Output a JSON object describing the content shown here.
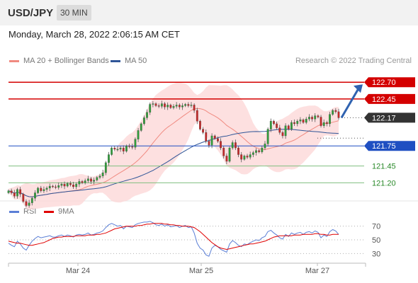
{
  "header": {
    "pair": "USD/JPY",
    "timeframe": "30 MIN",
    "datetime": "Monday, March 28, 2022 2:06:15 AM CET",
    "credit": "Research © 2022 Trading Central"
  },
  "legend": {
    "main": [
      {
        "label": "MA 20 + Bollinger Bands",
        "color": "#f08a80"
      },
      {
        "label": "MA 50",
        "color": "#2f5597"
      }
    ],
    "osc": [
      {
        "label": "RSI",
        "color": "#5b7fd6"
      },
      {
        "label": "9MA",
        "color": "#e00000"
      }
    ]
  },
  "colors": {
    "resistance": "#d40000",
    "current": "#333333",
    "support": "#1f4fc2",
    "target": "#2a8a2a",
    "arrow": "#2f62b0",
    "band": "#fcd5d5"
  },
  "chart_data": [
    {
      "type": "line",
      "subtype": "candlestick",
      "ylim": [
        120.95,
        122.85
      ],
      "x_ticks": [
        "Mar 24",
        "Mar 25",
        "Mar 27"
      ],
      "close_series": [
        121.08,
        121.05,
        121.0,
        121.1,
        121.03,
        120.92,
        120.86,
        120.9,
        120.97,
        121.05,
        121.12,
        121.08,
        121.1,
        121.12,
        121.15,
        121.14,
        121.13,
        121.16,
        121.18,
        121.15,
        121.19,
        121.17,
        121.14,
        121.18,
        121.22,
        121.2,
        121.23,
        121.26,
        121.22,
        121.24,
        121.28,
        121.3,
        121.35,
        121.5,
        121.62,
        121.72,
        121.7,
        121.7,
        121.72,
        121.67,
        121.75,
        121.74,
        121.73,
        121.85,
        121.98,
        122.08,
        122.17,
        122.25,
        122.37,
        122.38,
        122.35,
        122.34,
        122.38,
        122.33,
        122.36,
        122.32,
        122.34,
        122.36,
        122.33,
        122.35,
        122.37,
        122.35,
        122.36,
        122.28,
        122.12,
        122.0,
        121.95,
        121.82,
        121.76,
        121.9,
        121.86,
        121.82,
        121.72,
        121.6,
        121.52,
        121.72,
        121.8,
        121.72,
        121.62,
        121.55,
        121.6,
        121.58,
        121.62,
        121.65,
        121.68,
        121.66,
        121.72,
        121.78,
        122.0,
        122.12,
        122.08,
        122.02,
        121.95,
        121.9,
        122.05,
        122.0,
        122.1,
        122.08,
        122.12,
        122.14,
        122.1,
        122.15,
        122.18,
        122.15,
        122.2,
        122.18,
        122.05,
        122.1,
        122.08,
        122.22,
        122.28,
        122.26,
        122.17
      ],
      "levels": [
        {
          "label": "122.70",
          "value": 122.7,
          "kind": "resistance"
        },
        {
          "label": "122.45",
          "value": 122.45,
          "kind": "resistance"
        },
        {
          "label": "122.17",
          "value": 122.17,
          "kind": "current"
        },
        {
          "label": "121.75",
          "value": 121.75,
          "kind": "support"
        },
        {
          "label": "121.45",
          "value": 121.45,
          "kind": "target"
        },
        {
          "label": "121.20",
          "value": 121.2,
          "kind": "target"
        }
      ]
    },
    {
      "type": "line",
      "ylim": [
        20,
        80
      ],
      "y_ticks": [
        "70",
        "50",
        "30"
      ],
      "series": [
        {
          "name": "RSI",
          "values": [
            45,
            42,
            40,
            48,
            44,
            38,
            35,
            42,
            48,
            52,
            55,
            53,
            54,
            55,
            56,
            54,
            54,
            56,
            57,
            55,
            57,
            56,
            54,
            57,
            58,
            57,
            58,
            60,
            57,
            58,
            60,
            61,
            63,
            68,
            72,
            74,
            72,
            70,
            71,
            66,
            70,
            69,
            68,
            72,
            74,
            75,
            76,
            76,
            77,
            75,
            72,
            71,
            73,
            70,
            72,
            69,
            70,
            71,
            68,
            70,
            71,
            68,
            69,
            60,
            45,
            38,
            35,
            28,
            26,
            38,
            42,
            40,
            36,
            34,
            32,
            44,
            49,
            46,
            42,
            40,
            44,
            43,
            46,
            48,
            50,
            49,
            53,
            55,
            62,
            64,
            60,
            57,
            53,
            51,
            58,
            55,
            60,
            58,
            60,
            61,
            58,
            61,
            62,
            60,
            63,
            61,
            53,
            57,
            55,
            62,
            65,
            63,
            58
          ]
        },
        {
          "name": "9MA",
          "values": [
            48,
            47,
            46,
            45,
            45,
            44,
            43,
            42,
            42,
            43,
            44,
            45,
            46,
            48,
            50,
            52,
            53,
            54,
            54,
            55,
            55,
            55,
            55,
            56,
            56,
            56,
            56,
            57,
            57,
            57,
            58,
            58,
            59,
            60,
            62,
            64,
            66,
            67,
            68,
            69,
            70,
            70,
            70,
            70,
            71,
            71,
            72,
            73,
            73,
            74,
            74,
            74,
            74,
            73,
            73,
            72,
            72,
            71,
            71,
            70,
            70,
            70,
            69,
            68,
            65,
            62,
            58,
            54,
            50,
            46,
            43,
            40,
            38,
            37,
            36,
            37,
            38,
            39,
            40,
            41,
            42,
            43,
            44,
            44,
            45,
            46,
            47,
            48,
            50,
            52,
            54,
            55,
            56,
            56,
            56,
            56,
            56,
            57,
            57,
            57,
            58,
            58,
            58,
            58,
            59,
            59,
            58,
            58,
            57,
            57,
            58,
            58,
            58
          ]
        }
      ]
    }
  ]
}
